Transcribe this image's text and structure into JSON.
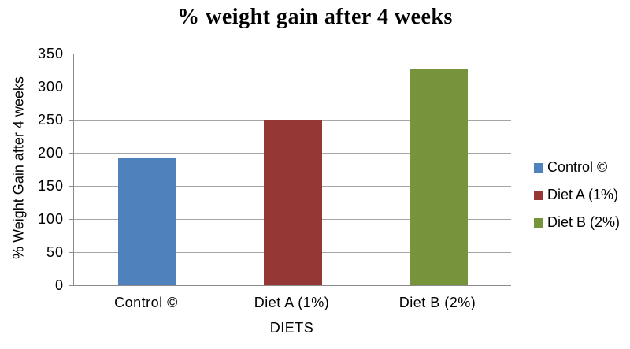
{
  "chart_data": {
    "type": "bar",
    "title": "% weight gain after 4 weeks",
    "xlabel": "DIETS",
    "ylabel": "% Weight Gain after 4 weeks",
    "categories": [
      "Control ©",
      "Diet A (1%)",
      "Diet B (2%)"
    ],
    "values": [
      193,
      250,
      327
    ],
    "colors": [
      "#4F81BD",
      "#953735",
      "#77933C"
    ],
    "ylim": [
      0,
      350
    ],
    "ytick_step": 50,
    "yticks": [
      0,
      50,
      100,
      150,
      200,
      250,
      300,
      350
    ],
    "grid": true,
    "gridline_color": "#a6a6a6",
    "axis_color": "#8a8a8a",
    "legend": {
      "position": "right",
      "entries": [
        {
          "label": "Control ©",
          "color": "#4F81BD"
        },
        {
          "label": "Diet A (1%)",
          "color": "#953735"
        },
        {
          "label": "Diet B (2%)",
          "color": "#77933C"
        }
      ]
    }
  }
}
